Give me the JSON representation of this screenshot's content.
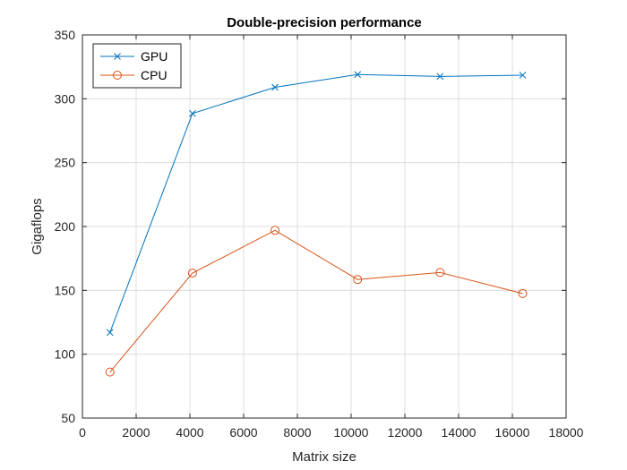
{
  "chart_data": {
    "type": "line",
    "title": "Double-precision performance",
    "xlabel": "Matrix size",
    "ylabel": "Gigaflops",
    "xlim": [
      0,
      18000
    ],
    "ylim": [
      50,
      350
    ],
    "xticks": [
      0,
      2000,
      4000,
      6000,
      8000,
      10000,
      12000,
      14000,
      16000,
      18000
    ],
    "yticks": [
      50,
      100,
      150,
      200,
      250,
      300,
      350
    ],
    "grid": true,
    "legend_position": "top-left",
    "x": [
      1024,
      4096,
      7168,
      10240,
      13312,
      16384
    ],
    "series": [
      {
        "name": "GPU",
        "marker": "x",
        "color": "#0072BD",
        "values": [
          117,
          288.5,
          309,
          319,
          317.5,
          318.5
        ]
      },
      {
        "name": "CPU",
        "marker": "o",
        "color": "#D95319",
        "values": [
          86,
          163.5,
          197,
          158.5,
          164,
          147.5
        ]
      }
    ]
  }
}
